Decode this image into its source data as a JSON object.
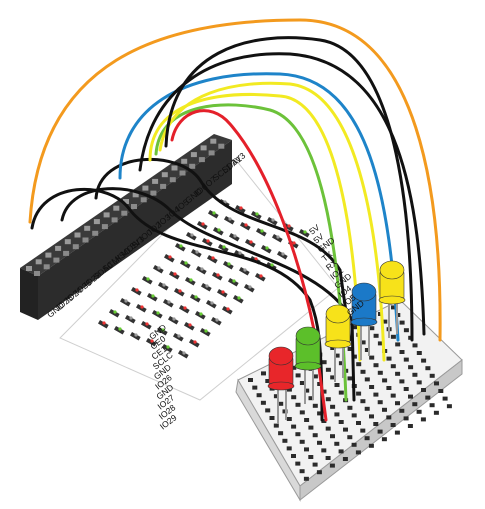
{
  "header_labels": {
    "left": [
      "GND",
      "IO25",
      "IO24",
      "IO23",
      "IO22",
      "SDA0",
      "SCLK",
      "MISO",
      "MOSI",
      "3V3",
      "IO0",
      "IO2",
      "IO3",
      "IO4",
      "IO5",
      "GND",
      "IO6",
      "IO7",
      "SCL1",
      "SDA1",
      "3V3"
    ],
    "right_top": [
      "5V",
      "5V",
      "GND",
      "TX",
      "RX",
      "IO1",
      "GND",
      "IO4",
      "IO5",
      "GND"
    ],
    "bottom": [
      "GND",
      "CE0",
      "CE1",
      "SCLC",
      "GND",
      "IO26",
      "GND",
      "IO27",
      "IO28",
      "IO29"
    ]
  },
  "leds": [
    {
      "id": "led-red",
      "color": "#e8262a"
    },
    {
      "id": "led-green",
      "color": "#5cbf2a"
    },
    {
      "id": "led-yellow-1",
      "color": "#f7e21a"
    },
    {
      "id": "led-blue",
      "color": "#1b79c8"
    },
    {
      "id": "led-yellow-2",
      "color": "#f7e21a"
    }
  ],
  "wire_colors": {
    "orange": "#f39a1e",
    "black": "#111111",
    "blue": "#1e84c9",
    "yellow": "#f2ea22",
    "green": "#6cc23a",
    "red": "#e4202a"
  }
}
